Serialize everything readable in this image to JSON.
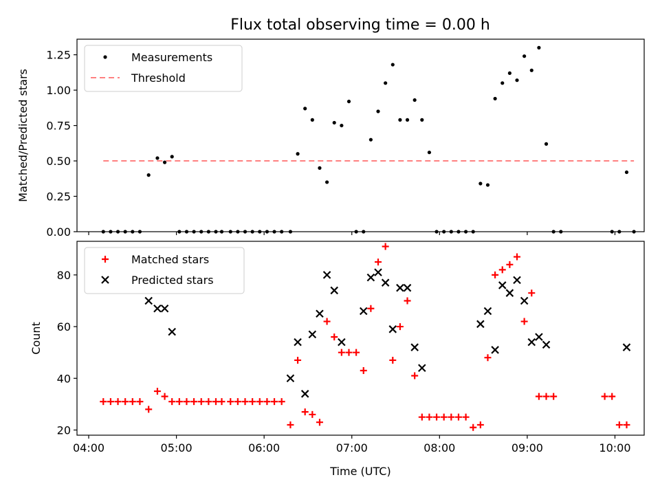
{
  "figure_title": "Flux total observing time = 0.00 h",
  "chart_data": [
    {
      "type": "scatter",
      "title": "Flux total observing time = 0.00 h",
      "xlabel": "",
      "ylabel": "Matched/Predicted stars",
      "xlim": [
        "03:52",
        "10:20"
      ],
      "ylim": [
        0,
        1.36
      ],
      "yticks": [
        "0.00",
        "0.25",
        "0.50",
        "0.75",
        "1.00",
        "1.25"
      ],
      "legend": {
        "location": "top-left",
        "entries": [
          "Measurements",
          "Threshold"
        ]
      },
      "series": [
        {
          "name": "Measurements",
          "marker": "dot",
          "color": "#000000",
          "points": [
            [
              "04:10",
              0
            ],
            [
              "04:15",
              0
            ],
            [
              "04:20",
              0
            ],
            [
              "04:25",
              0
            ],
            [
              "04:30",
              0
            ],
            [
              "04:35",
              0
            ],
            [
              "04:41",
              0.4
            ],
            [
              "04:47",
              0.52
            ],
            [
              "04:52",
              0.49
            ],
            [
              "04:57",
              0.53
            ],
            [
              "05:02",
              0
            ],
            [
              "05:07",
              0
            ],
            [
              "05:12",
              0
            ],
            [
              "05:17",
              0
            ],
            [
              "05:22",
              0
            ],
            [
              "05:27",
              0
            ],
            [
              "05:31",
              0
            ],
            [
              "05:37",
              0
            ],
            [
              "05:42",
              0
            ],
            [
              "05:47",
              0
            ],
            [
              "05:52",
              0
            ],
            [
              "05:57",
              0
            ],
            [
              "06:02",
              0
            ],
            [
              "06:07",
              0
            ],
            [
              "06:12",
              0
            ],
            [
              "06:18",
              0
            ],
            [
              "06:23",
              0.55
            ],
            [
              "06:28",
              0.87
            ],
            [
              "06:33",
              0.79
            ],
            [
              "06:38",
              0.45
            ],
            [
              "06:43",
              0.35
            ],
            [
              "06:48",
              0.77
            ],
            [
              "06:53",
              0.75
            ],
            [
              "06:58",
              0.92
            ],
            [
              "07:03",
              0
            ],
            [
              "07:08",
              0
            ],
            [
              "07:13",
              0.65
            ],
            [
              "07:18",
              0.85
            ],
            [
              "07:23",
              1.05
            ],
            [
              "07:28",
              1.18
            ],
            [
              "07:33",
              0.79
            ],
            [
              "07:38",
              0.79
            ],
            [
              "07:43",
              0.93
            ],
            [
              "07:48",
              0.79
            ],
            [
              "07:53",
              0.56
            ],
            [
              "07:58",
              0
            ],
            [
              "08:03",
              0
            ],
            [
              "08:08",
              0
            ],
            [
              "08:13",
              0
            ],
            [
              "08:18",
              0
            ],
            [
              "08:23",
              0
            ],
            [
              "08:28",
              0.34
            ],
            [
              "08:33",
              0.33
            ],
            [
              "08:38",
              0.94
            ],
            [
              "08:43",
              1.05
            ],
            [
              "08:48",
              1.12
            ],
            [
              "08:53",
              1.07
            ],
            [
              "08:58",
              1.24
            ],
            [
              "09:03",
              1.14
            ],
            [
              "09:08",
              1.3
            ],
            [
              "09:13",
              0.62
            ],
            [
              "09:18",
              0
            ],
            [
              "09:23",
              0
            ],
            [
              "09:58",
              0
            ],
            [
              "10:03",
              0
            ],
            [
              "10:08",
              0.42
            ],
            [
              "10:13",
              0
            ]
          ]
        },
        {
          "name": "Threshold",
          "style": "dashed",
          "color": "#ff8080",
          "points": [
            [
              "04:10",
              0.5
            ],
            [
              "10:13",
              0.5
            ]
          ]
        }
      ]
    },
    {
      "type": "scatter",
      "title": "",
      "xlabel": "Time (UTC)",
      "ylabel": "Count",
      "xlim": [
        "03:52",
        "10:20"
      ],
      "ylim": [
        18,
        93
      ],
      "yticks": [
        "20",
        "40",
        "60",
        "80"
      ],
      "xticks": [
        "04:00",
        "05:00",
        "06:00",
        "07:00",
        "08:00",
        "09:00",
        "10:00"
      ],
      "legend": {
        "location": "top-left",
        "entries": [
          "Matched stars",
          "Predicted stars"
        ]
      },
      "series": [
        {
          "name": "Matched stars",
          "marker": "plus",
          "color": "#ff0000",
          "points": [
            [
              "04:10",
              31
            ],
            [
              "04:15",
              31
            ],
            [
              "04:20",
              31
            ],
            [
              "04:25",
              31
            ],
            [
              "04:30",
              31
            ],
            [
              "04:35",
              31
            ],
            [
              "04:41",
              28
            ],
            [
              "04:47",
              35
            ],
            [
              "04:52",
              33
            ],
            [
              "04:57",
              31
            ],
            [
              "05:02",
              31
            ],
            [
              "05:07",
              31
            ],
            [
              "05:12",
              31
            ],
            [
              "05:17",
              31
            ],
            [
              "05:22",
              31
            ],
            [
              "05:27",
              31
            ],
            [
              "05:31",
              31
            ],
            [
              "05:37",
              31
            ],
            [
              "05:42",
              31
            ],
            [
              "05:47",
              31
            ],
            [
              "05:52",
              31
            ],
            [
              "05:57",
              31
            ],
            [
              "06:02",
              31
            ],
            [
              "06:07",
              31
            ],
            [
              "06:12",
              31
            ],
            [
              "06:18",
              22
            ],
            [
              "06:23",
              47
            ],
            [
              "06:28",
              27
            ],
            [
              "06:33",
              26
            ],
            [
              "06:38",
              23
            ],
            [
              "06:43",
              62
            ],
            [
              "06:48",
              56
            ],
            [
              "06:53",
              50
            ],
            [
              "06:58",
              50
            ],
            [
              "07:03",
              50
            ],
            [
              "07:08",
              43
            ],
            [
              "07:13",
              67
            ],
            [
              "07:18",
              85
            ],
            [
              "07:23",
              91
            ],
            [
              "07:28",
              47
            ],
            [
              "07:33",
              60
            ],
            [
              "07:38",
              70
            ],
            [
              "07:43",
              41
            ],
            [
              "07:48",
              25
            ],
            [
              "07:53",
              25
            ],
            [
              "07:58",
              25
            ],
            [
              "08:03",
              25
            ],
            [
              "08:08",
              25
            ],
            [
              "08:13",
              25
            ],
            [
              "08:18",
              25
            ],
            [
              "08:23",
              21
            ],
            [
              "08:28",
              22
            ],
            [
              "08:33",
              48
            ],
            [
              "08:38",
              80
            ],
            [
              "08:43",
              82
            ],
            [
              "08:48",
              84
            ],
            [
              "08:53",
              87
            ],
            [
              "08:58",
              62
            ],
            [
              "09:03",
              73
            ],
            [
              "09:08",
              33
            ],
            [
              "09:13",
              33
            ],
            [
              "09:18",
              33
            ],
            [
              "09:53",
              33
            ],
            [
              "09:58",
              33
            ],
            [
              "10:03",
              22
            ],
            [
              "10:08",
              22
            ]
          ]
        },
        {
          "name": "Predicted stars",
          "marker": "x",
          "color": "#000000",
          "points": [
            [
              "04:41",
              70
            ],
            [
              "04:47",
              67
            ],
            [
              "04:52",
              67
            ],
            [
              "04:57",
              58
            ],
            [
              "06:18",
              40
            ],
            [
              "06:23",
              54
            ],
            [
              "06:28",
              34
            ],
            [
              "06:33",
              57
            ],
            [
              "06:38",
              65
            ],
            [
              "06:43",
              80
            ],
            [
              "06:48",
              74
            ],
            [
              "06:53",
              54
            ],
            [
              "07:08",
              66
            ],
            [
              "07:13",
              79
            ],
            [
              "07:18",
              81
            ],
            [
              "07:23",
              77
            ],
            [
              "07:28",
              59
            ],
            [
              "07:33",
              75
            ],
            [
              "07:38",
              75
            ],
            [
              "07:43",
              52
            ],
            [
              "07:48",
              44
            ],
            [
              "08:28",
              61
            ],
            [
              "08:33",
              66
            ],
            [
              "08:38",
              51
            ],
            [
              "08:43",
              76
            ],
            [
              "08:48",
              73
            ],
            [
              "08:53",
              78
            ],
            [
              "08:58",
              70
            ],
            [
              "09:03",
              54
            ],
            [
              "09:08",
              56
            ],
            [
              "09:13",
              53
            ],
            [
              "10:08",
              52
            ]
          ]
        }
      ]
    }
  ]
}
